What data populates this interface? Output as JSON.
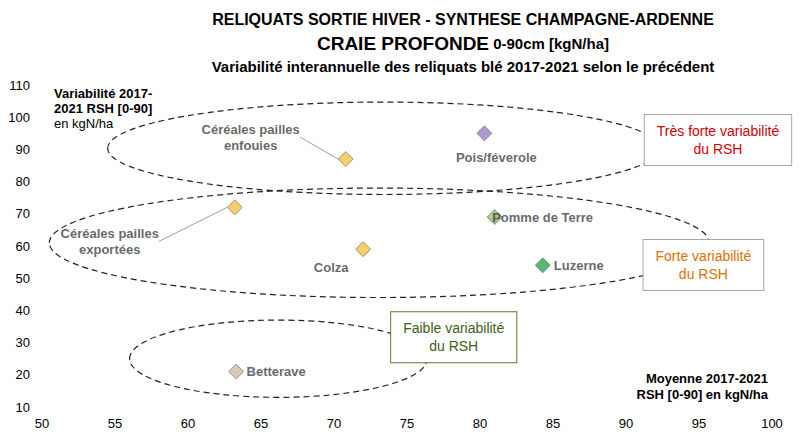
{
  "chart_data": {
    "type": "scatter",
    "title": "RELIQUATS SORTIE HIVER - SYNTHESE CHAMPAGNE-ARDENNE",
    "subtitle": "CRAIE PROFONDE 0-90cm [kgN/ha]",
    "subtitle_bold": "CRAIE PROFONDE",
    "description": "Variabilité interannuelle des reliquats blé 2017-2021 selon le précédent",
    "xlabel": [
      "Moyenne 2017-2021",
      "RSH [0-90] en kgN/ha"
    ],
    "ylabel": [
      "Variabilité 2017-",
      "2021 RSH [0-90]",
      "en kgN/ha"
    ],
    "categories": [
      "Céréales pailles\nenfouies",
      "Pois/féverole",
      "Céréales pailles\nexportées",
      "Pomme de Terre",
      "Colza",
      "Luzerne",
      "Betterave"
    ],
    "x": [
      70.8,
      80.3,
      63.2,
      81.0,
      72.0,
      84.3,
      63.3
    ],
    "values": [
      87,
      95,
      72,
      69,
      59,
      54,
      21
    ],
    "colors": [
      "#f5c242",
      "#9b7fc8",
      "#f5c242",
      "#8fbf6a",
      "#f5c242",
      "#2ea44f",
      "#c9c1a3"
    ],
    "marker": "diamond",
    "xlim": [
      50,
      100
    ],
    "xticks": [
      50,
      55,
      60,
      65,
      70,
      75,
      80,
      85,
      90,
      95,
      100
    ],
    "ylim": [
      10,
      110
    ],
    "yticks": [
      10,
      20,
      30,
      40,
      50,
      60,
      70,
      80,
      90,
      100,
      110
    ],
    "grid": false,
    "annotations": [
      {
        "text": "Très forte variabilité\ndu RSH",
        "color": "#d40000",
        "x": [
          54.5,
          92.3
        ],
        "y": [
          76,
          104.7
        ],
        "label_at": [
          96.3,
          92.9
        ]
      },
      {
        "text": "Forte variabilité\ndu RSH",
        "color": "#e07000",
        "x": [
          50.5,
          95.7
        ],
        "y": [
          44,
          78
        ],
        "label_at": [
          95.3,
          54.1
        ]
      },
      {
        "text": "Faible variabilité\ndu RSH",
        "color": "#3f5f14",
        "x": [
          56,
          76.4
        ],
        "y": [
          13,
          37
        ],
        "label_at": [
          78.2,
          31.7
        ]
      }
    ]
  }
}
